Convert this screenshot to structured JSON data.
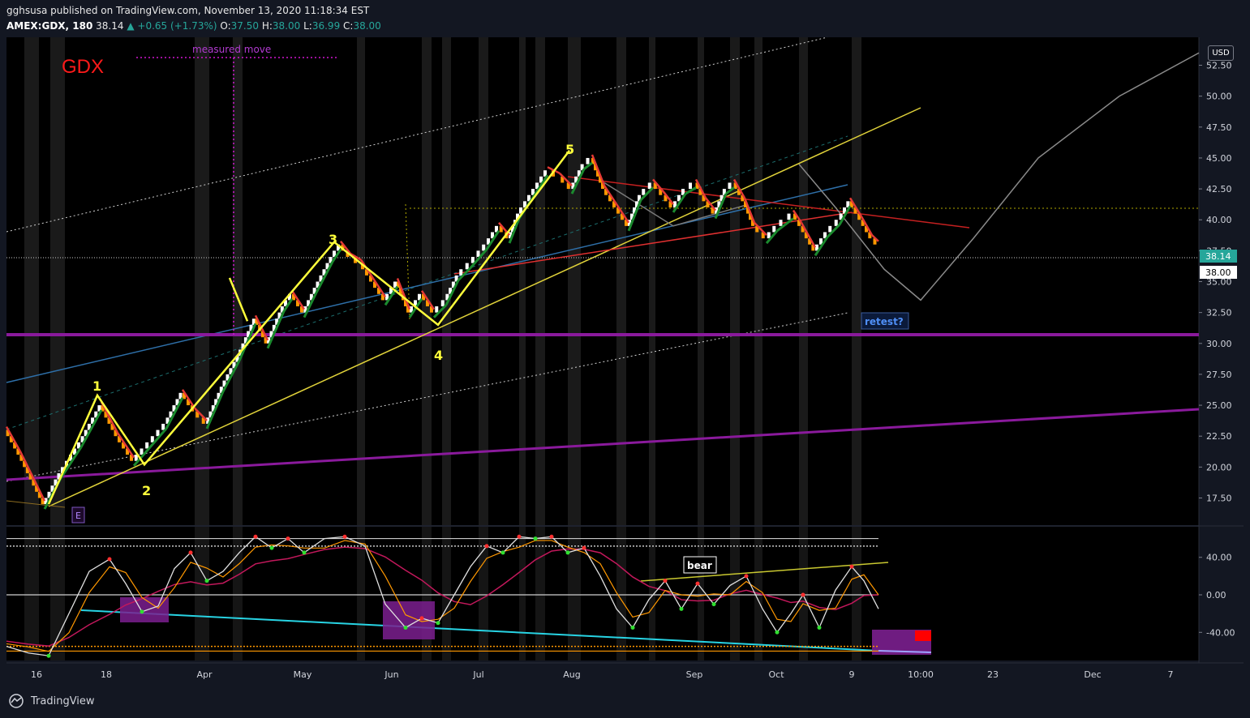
{
  "header": {
    "publisher_line": "gghsusa published on TradingView.com, November 13, 2020 11:18:34 EST",
    "symbol": "AMEX:GDX, 180",
    "last": "38.14",
    "change": "+0.65 (+1.73%)",
    "o_label": "O:",
    "o_value": "37.50",
    "h_label": "H:",
    "h_value": "38.00",
    "l_label": "L:",
    "l_value": "36.99",
    "c_label": "C:",
    "c_value": "38.00"
  },
  "footer": {
    "brand": "TradingView"
  },
  "currency": "USD",
  "annotations": {
    "ticker_label": "GDX",
    "measured_move": "measured move",
    "retest": "retest?",
    "bear": "bear",
    "earnings_marker": "E",
    "waves": [
      "1",
      "2",
      "3",
      "4",
      "5"
    ]
  },
  "colors": {
    "background": "#000000",
    "up_brick": "#ffffff",
    "down_brick": "#ff9800",
    "uptrend_line": "#1b8a2e",
    "downtrend_line": "#e53935",
    "wave": "#ffff3b",
    "channel": "#c8c8c8",
    "purple": "#8a1a9c",
    "cyan": "#28d4e4",
    "price_tag": "#26a69a"
  },
  "chart_data": [
    {
      "type": "line",
      "subtype": "renko",
      "price_axis": {
        "ticks": [
          "52.50",
          "50.00",
          "47.50",
          "45.00",
          "42.50",
          "40.00",
          "37.50",
          "35.00",
          "32.50",
          "30.00",
          "27.50",
          "25.00",
          "22.50",
          "20.00",
          "17.50"
        ],
        "ylim": [
          15.5,
          54.5
        ],
        "last_price": "38.14",
        "close_label": "38.00"
      },
      "time_axis": {
        "labels": [
          "16",
          "18",
          "Apr",
          "May",
          "Jun",
          "Jul",
          "Aug",
          "Sep",
          "Oct",
          "9",
          "10:00",
          "23",
          "Dec",
          "7"
        ]
      },
      "series": [
        {
          "points": [
            [
              8,
              23.0
            ],
            [
              25,
              21.0
            ],
            [
              55,
              17.0
            ],
            [
              75,
              19.5
            ],
            [
              100,
              22.0
            ],
            [
              125,
              25.0
            ],
            [
              145,
              22.5
            ],
            [
              165,
              20.5
            ],
            [
              185,
              22.0
            ],
            [
              205,
              23.5
            ],
            [
              225,
              26.0
            ],
            [
              240,
              24.5
            ],
            [
              255,
              23.5
            ],
            [
              275,
              26.5
            ],
            [
              295,
              29.0
            ],
            [
              315,
              32.0
            ],
            [
              330,
              30.0
            ],
            [
              350,
              33.0
            ],
            [
              360,
              34.0
            ],
            [
              375,
              32.5
            ],
            [
              390,
              34.5
            ],
            [
              410,
              37.0
            ],
            [
              420,
              38.0
            ],
            [
              432,
              37.0
            ],
            [
              445,
              36.5
            ],
            [
              460,
              35.0
            ],
            [
              475,
              33.5
            ],
            [
              490,
              35.0
            ],
            [
              505,
              32.5
            ],
            [
              520,
              34.0
            ],
            [
              535,
              32.5
            ],
            [
              550,
              33.5
            ],
            [
              565,
              35.5
            ],
            [
              580,
              36.5
            ],
            [
              600,
              38.0
            ],
            [
              615,
              39.5
            ],
            [
              628,
              38.5
            ],
            [
              640,
              40.5
            ],
            [
              655,
              42.0
            ],
            [
              675,
              44.0
            ],
            [
              690,
              43.5
            ],
            [
              705,
              42.5
            ],
            [
              720,
              44.5
            ],
            [
              730,
              45.0
            ],
            [
              745,
              42.5
            ],
            [
              760,
              41.0
            ],
            [
              775,
              39.5
            ],
            [
              790,
              42.0
            ],
            [
              805,
              43.0
            ],
            [
              818,
              42.0
            ],
            [
              830,
              41.0
            ],
            [
              845,
              42.5
            ],
            [
              858,
              43.0
            ],
            [
              870,
              41.5
            ],
            [
              882,
              40.5
            ],
            [
              895,
              42.5
            ],
            [
              905,
              43.0
            ],
            [
              918,
              41.5
            ],
            [
              930,
              39.5
            ],
            [
              945,
              38.5
            ],
            [
              958,
              39.5
            ],
            [
              968,
              40.0
            ],
            [
              978,
              40.5
            ],
            [
              988,
              39.5
            ],
            [
              1005,
              37.5
            ],
            [
              1020,
              39.0
            ],
            [
              1035,
              40.0
            ],
            [
              1048,
              41.5
            ],
            [
              1062,
              40.0
            ],
            [
              1075,
              38.5
            ],
            [
              1083,
              38.0
            ]
          ]
        },
        {
          "name": "projection",
          "points": [
            [
              985,
              44.5
            ],
            [
              1030,
              41.0
            ],
            [
              1090,
              36.0
            ],
            [
              1135,
              33.5
            ],
            [
              1200,
              38.5
            ],
            [
              1280,
              45.0
            ],
            [
              1380,
              50.0
            ],
            [
              1478,
              53.5
            ]
          ]
        }
      ]
    },
    {
      "type": "line",
      "subtype": "oscillator",
      "yaxis": {
        "ticks": [
          "40.00",
          "0.00",
          "-40.00"
        ],
        "ylim": [
          -70,
          70
        ]
      },
      "levels": [
        60,
        52,
        0,
        -55,
        -60
      ],
      "series": [
        {
          "points": [
            [
              8,
              -55
            ],
            [
              35,
              -62
            ],
            [
              60,
              -65
            ],
            [
              85,
              -20
            ],
            [
              110,
              25
            ],
            [
              135,
              38
            ],
            [
              155,
              12
            ],
            [
              175,
              -18
            ],
            [
              195,
              -12
            ],
            [
              215,
              28
            ],
            [
              235,
              45
            ],
            [
              255,
              15
            ],
            [
              275,
              25
            ],
            [
              295,
              45
            ],
            [
              315,
              62
            ],
            [
              335,
              50
            ],
            [
              355,
              60
            ],
            [
              375,
              45
            ],
            [
              400,
              60
            ],
            [
              425,
              62
            ],
            [
              450,
              52
            ],
            [
              475,
              -10
            ],
            [
              500,
              -35
            ],
            [
              520,
              -25
            ],
            [
              540,
              -30
            ],
            [
              560,
              0
            ],
            [
              580,
              30
            ],
            [
              600,
              52
            ],
            [
              620,
              45
            ],
            [
              640,
              62
            ],
            [
              660,
              60
            ],
            [
              680,
              62
            ],
            [
              700,
              45
            ],
            [
              720,
              50
            ],
            [
              740,
              20
            ],
            [
              760,
              -15
            ],
            [
              780,
              -35
            ],
            [
              800,
              -5
            ],
            [
              820,
              15
            ],
            [
              840,
              -15
            ],
            [
              860,
              12
            ],
            [
              880,
              -10
            ],
            [
              900,
              10
            ],
            [
              920,
              20
            ],
            [
              940,
              -15
            ],
            [
              958,
              -40
            ],
            [
              975,
              -20
            ],
            [
              990,
              0
            ],
            [
              1010,
              -35
            ],
            [
              1030,
              5
            ],
            [
              1050,
              30
            ],
            [
              1065,
              15
            ],
            [
              1083,
              -15
            ]
          ]
        }
      ]
    }
  ]
}
